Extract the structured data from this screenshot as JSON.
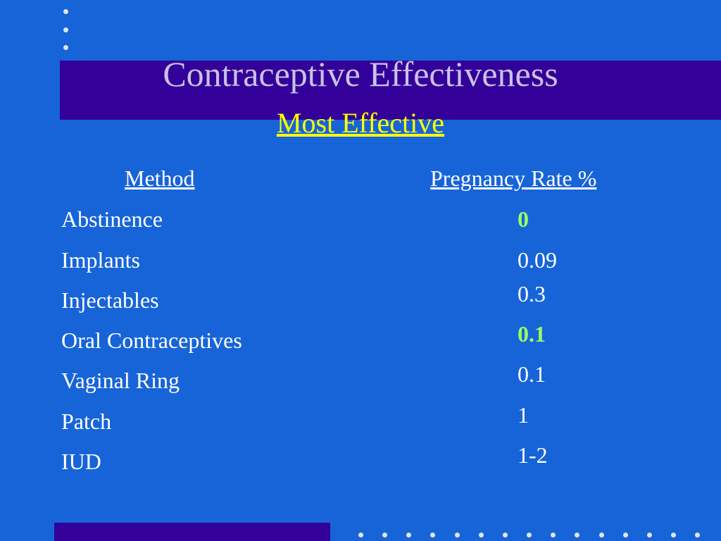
{
  "slide": {
    "title": "Contraceptive Effectiveness",
    "subtitle": "Most Effective"
  },
  "table": {
    "headers": {
      "method": "Method",
      "rate": "Pregnancy Rate %"
    },
    "rows": [
      {
        "method": "Abstinence",
        "rate": "0",
        "highlight": true
      },
      {
        "method": "Implants",
        "rate": "0.09",
        "highlight": false
      },
      {
        "method": "Injectables",
        "rate": "0.3",
        "highlight": false
      },
      {
        "method": "Oral Contraceptives",
        "rate": "0.1",
        "highlight": true
      },
      {
        "method": "Vaginal Ring",
        "rate": "0.1",
        "highlight": false
      },
      {
        "method": "Patch",
        "rate": "1",
        "highlight": false
      },
      {
        "method": "IUD",
        "rate": "1-2",
        "highlight": false
      }
    ]
  },
  "colors": {
    "background": "#1764d8",
    "band": "#330099",
    "title": "#c9c2e6",
    "subtitle": "#ffff00",
    "highlight": "#99ff66"
  }
}
